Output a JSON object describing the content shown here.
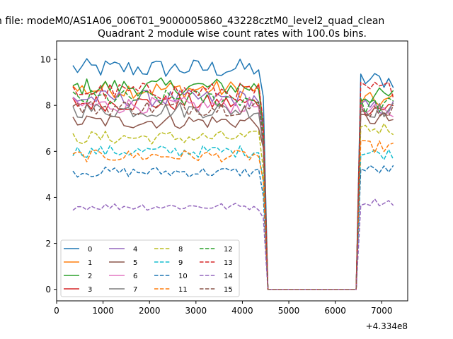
{
  "figure": {
    "suptitle": "n file: modeM0/AS1A06_006T01_9000005860_43228cztM0_level2_quad_clean",
    "offset_label": "+4.334e8"
  },
  "chart_data": {
    "type": "line",
    "title": "Quadrant 2 module wise count rates with 100.0s bins.",
    "xlabel": "",
    "ylabel": "",
    "xlim": [
      0,
      7560
    ],
    "ylim": [
      -0.5,
      10.8
    ],
    "x_offset": 433400000,
    "xticks": [
      0,
      1000,
      2000,
      3000,
      4000,
      5000,
      6000,
      7000
    ],
    "yticks": [
      0,
      2,
      4,
      6,
      8,
      10
    ],
    "grid": false,
    "legend": {
      "placement": "lower-left",
      "columns": 4
    },
    "segments": [
      {
        "x_start": 350,
        "x_end": 4350,
        "step": 100
      },
      {
        "x_start": 4450,
        "x_end": 4450,
        "step": 100
      },
      {
        "x_start": 4550,
        "x_end": 6450,
        "step": 100
      },
      {
        "x_start": 6550,
        "x_end": 7250,
        "step": 100
      }
    ],
    "series": [
      {
        "name": "0",
        "color": "#1f77b4",
        "dash": "solid",
        "levels": [
          9.6,
          8.1,
          0,
          9.1
        ]
      },
      {
        "name": "1",
        "color": "#ff7f0e",
        "dash": "solid",
        "levels": [
          8.7,
          7.0,
          0,
          8.2
        ]
      },
      {
        "name": "2",
        "color": "#2ca02c",
        "dash": "solid",
        "levels": [
          8.8,
          7.1,
          0,
          8.4
        ]
      },
      {
        "name": "3",
        "color": "#d62728",
        "dash": "solid",
        "levels": [
          8.1,
          6.5,
          0,
          7.9
        ]
      },
      {
        "name": "4",
        "color": "#9467bd",
        "dash": "solid",
        "levels": [
          8.3,
          6.7,
          0,
          7.9
        ]
      },
      {
        "name": "5",
        "color": "#8c564b",
        "dash": "solid",
        "levels": [
          7.3,
          5.9,
          0,
          7.4
        ]
      },
      {
        "name": "6",
        "color": "#e377c2",
        "dash": "solid",
        "levels": [
          8.0,
          6.5,
          0,
          7.7
        ]
      },
      {
        "name": "7",
        "color": "#7f7f7f",
        "dash": "solid",
        "levels": [
          7.8,
          6.3,
          0,
          7.8
        ]
      },
      {
        "name": "8",
        "color": "#bcbd22",
        "dash": "dashed",
        "levels": [
          6.6,
          5.4,
          0,
          7.0
        ]
      },
      {
        "name": "9",
        "color": "#17becf",
        "dash": "dashed",
        "levels": [
          6.0,
          4.9,
          0,
          5.9
        ]
      },
      {
        "name": "10",
        "color": "#1f77b4",
        "dash": "dashed",
        "levels": [
          5.1,
          4.2,
          0,
          5.2
        ]
      },
      {
        "name": "11",
        "color": "#ff7f0e",
        "dash": "dashed",
        "levels": [
          5.8,
          4.7,
          0,
          6.2
        ]
      },
      {
        "name": "12",
        "color": "#2ca02c",
        "dash": "dashed",
        "levels": [
          8.3,
          6.8,
          0,
          8.0
        ]
      },
      {
        "name": "13",
        "color": "#d62728",
        "dash": "dashed",
        "levels": [
          8.6,
          7.0,
          0,
          8.7
        ]
      },
      {
        "name": "14",
        "color": "#9467bd",
        "dash": "dashed",
        "levels": [
          3.6,
          3.0,
          0,
          3.8
        ]
      },
      {
        "name": "15",
        "color": "#8c564b",
        "dash": "dashed",
        "levels": [
          7.9,
          6.4,
          0,
          7.8
        ]
      }
    ]
  }
}
